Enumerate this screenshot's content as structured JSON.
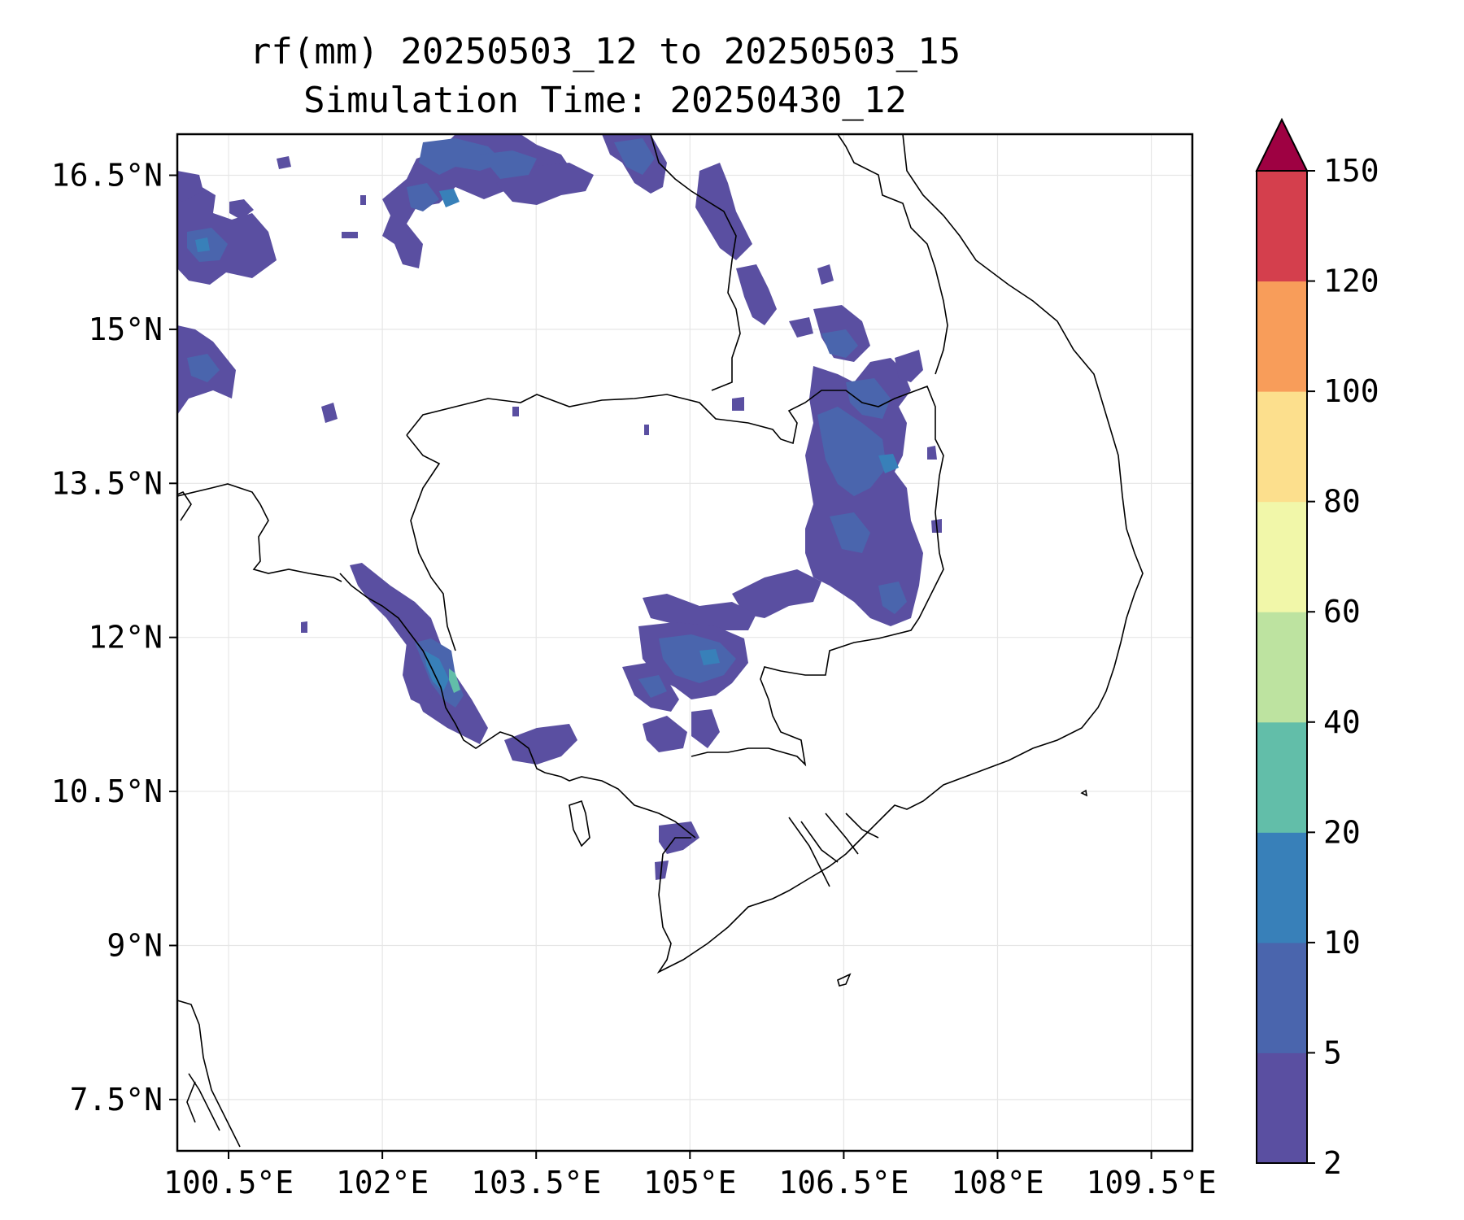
{
  "title": {
    "line1": "rf(mm) 20250503_12 to 20250503_15",
    "line2": "Simulation Time: 20250430_12"
  },
  "map": {
    "lon_range": [
      100.0,
      109.9
    ],
    "lat_range": [
      7.0,
      16.9
    ],
    "lon_ticks": [
      "100.5°E",
      "102°E",
      "103.5°E",
      "105°E",
      "106.5°E",
      "108°E",
      "109.5°E"
    ],
    "lat_ticks": [
      "16.5°N",
      "15°N",
      "13.5°N",
      "12°N",
      "10.5°N",
      "9°N",
      "7.5°N"
    ],
    "gridlines": true,
    "variable": "rf(mm)"
  },
  "colorbar": {
    "levels": [
      "2",
      "5",
      "10",
      "20",
      "40",
      "60",
      "80",
      "100",
      "120",
      "150"
    ],
    "colors": [
      "#5a4fa1",
      "#4a65ad",
      "#3880b9",
      "#62bea9",
      "#bde3a0",
      "#f1f7a9",
      "#fcdf8d",
      "#f89d5a",
      "#d43f4d",
      "#9e0142"
    ],
    "extend": "max"
  },
  "chart_data": {
    "type": "heatmap",
    "colorbar_levels": [
      2,
      5,
      10,
      20,
      40,
      60,
      80,
      100,
      120,
      150
    ],
    "x_ticks": [
      "100.5°E",
      "102°E",
      "103.5°E",
      "105°E",
      "106.5°E",
      "108°E",
      "109.5°E"
    ],
    "y_ticks": [
      "16.5°N",
      "15°N",
      "13.5°N",
      "12°N",
      "10.5°N",
      "9°N",
      "7.5°N"
    ]
  }
}
